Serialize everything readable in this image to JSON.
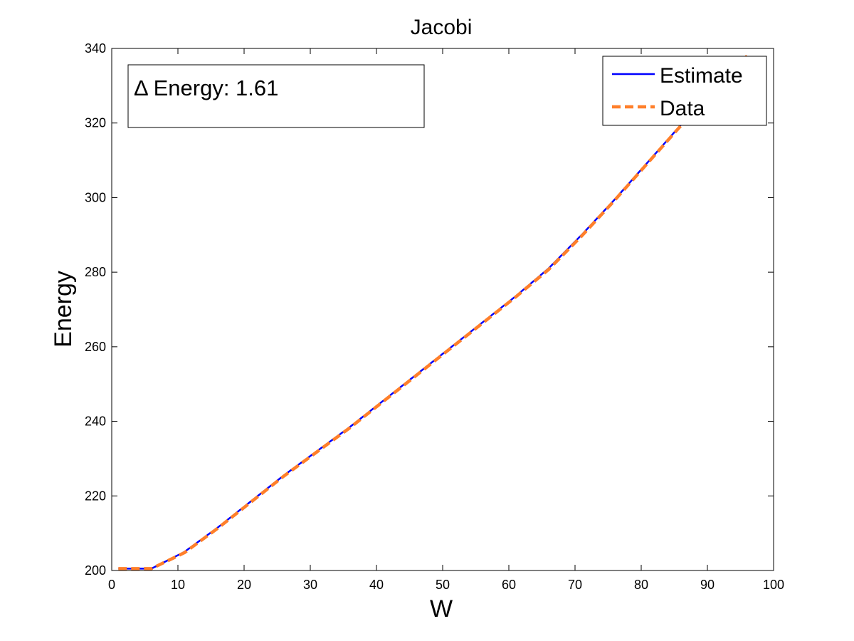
{
  "chart_data": {
    "type": "line",
    "title": "Jacobi",
    "xlabel": "W",
    "ylabel": "Energy",
    "xlim": [
      0,
      100
    ],
    "ylim": [
      200,
      340
    ],
    "xticks": [
      0,
      10,
      20,
      30,
      40,
      50,
      60,
      70,
      80,
      90,
      100
    ],
    "yticks": [
      200,
      220,
      240,
      260,
      280,
      300,
      320,
      340
    ],
    "grid": false,
    "legend_position": "top-right",
    "annotation": "Δ Energy: 1.61",
    "series": [
      {
        "name": "Estimate",
        "color": "#0000ff",
        "style": "solid",
        "x": [
          1,
          6,
          11,
          16,
          21,
          26,
          31,
          36,
          41,
          46,
          51,
          56,
          61,
          66,
          71,
          76,
          81,
          86,
          91,
          96
        ],
        "y": [
          200.5,
          200.5,
          205,
          211.5,
          218.5,
          225.5,
          232,
          238.5,
          245.5,
          252.5,
          259.5,
          266.5,
          273.5,
          281,
          290,
          299.5,
          309.5,
          319.5,
          329,
          338
        ]
      },
      {
        "name": "Data",
        "color": "#ff7f2a",
        "style": "dashed",
        "x": [
          1,
          6,
          11,
          16,
          21,
          26,
          31,
          36,
          41,
          46,
          51,
          56,
          61,
          66,
          71,
          76,
          81,
          86,
          91,
          96
        ],
        "y": [
          200.5,
          200.5,
          204.8,
          211.3,
          218.3,
          225.3,
          231.8,
          238.3,
          245.3,
          252.3,
          259.3,
          266.3,
          273.3,
          280.7,
          289.7,
          299.3,
          309.3,
          319.3,
          328.8,
          338
        ]
      }
    ]
  }
}
